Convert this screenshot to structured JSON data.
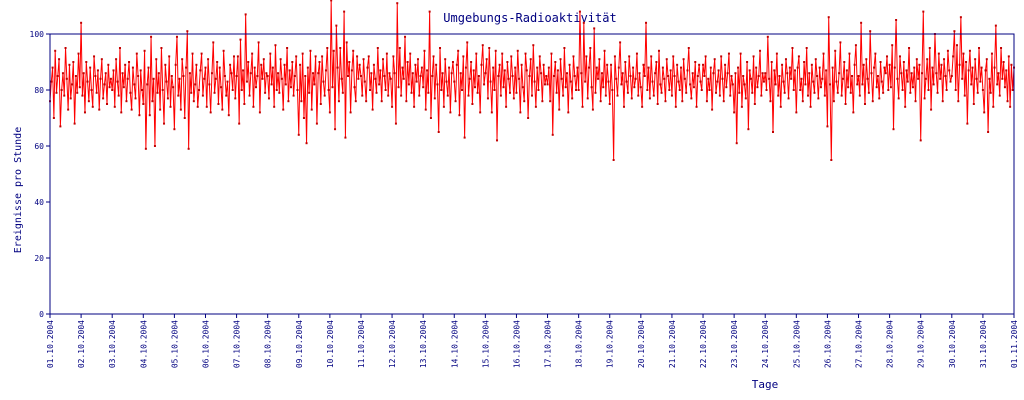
{
  "chart_data": {
    "type": "line",
    "title": "Umgebungs-Radioaktivität",
    "xlabel": "Tage",
    "ylabel": "Ereignisse pro Stunde",
    "ylim": [
      0,
      100
    ],
    "yticks": [
      0,
      20,
      40,
      60,
      80,
      100
    ],
    "x_tick_labels": [
      "01.10.2004",
      "02.10.2004",
      "03.10.2004",
      "04.10.2004",
      "05.10.2004",
      "06.10.2004",
      "07.10.2004",
      "08.10.2004",
      "09.10.2004",
      "10.10.2004",
      "11.10.2004",
      "12.10.2004",
      "13.10.2004",
      "14.10.2004",
      "15.10.2004",
      "16.10.2004",
      "17.10.2004",
      "18.10.2004",
      "19.10.2004",
      "20.10.2004",
      "21.10.2004",
      "22.10.2004",
      "23.10.2004",
      "24.10.2004",
      "25.10.2004",
      "26.10.2004",
      "27.10.2004",
      "28.10.2004",
      "29.10.2004",
      "30.10.2004",
      "31.10.2004",
      "01.11.2004"
    ],
    "grid": false,
    "legend": "none",
    "series": [
      {
        "color": "#ff0000",
        "marker_color": "#c00000",
        "description": "hourly counts, 01.10.2004 to 01.11.2004",
        "daily_values": [
          [
            76,
            83,
            88,
            70,
            94,
            79,
            85,
            91,
            67,
            80,
            86,
            78,
            95,
            84,
            73,
            89,
            77,
            82,
            90,
            68,
            85,
            79,
            93,
            81
          ],
          [
            104,
            78,
            86,
            72,
            90,
            83,
            76,
            88,
            80,
            74,
            92,
            85,
            79,
            87,
            73,
            84,
            91,
            77,
            82,
            86,
            75,
            89,
            81,
            84
          ],
          [
            80,
            87,
            74,
            91,
            83,
            78,
            95,
            72,
            86,
            81,
            89,
            76,
            84,
            90,
            79,
            73,
            88,
            82,
            77,
            93,
            85,
            71,
            87,
            80
          ],
          [
            75,
            94,
            59,
            82,
            88,
            71,
            99,
            76,
            84,
            60,
            91,
            79,
            86,
            73,
            95,
            80,
            68,
            89,
            83,
            77,
            92,
            74,
            85,
            81
          ],
          [
            66,
            89,
            99,
            78,
            84,
            73,
            91,
            85,
            70,
            88,
            101,
            59,
            86,
            79,
            93,
            76,
            82,
            89,
            74,
            80,
            87,
            93,
            78,
            84
          ],
          [
            88,
            74,
            91,
            82,
            72,
            86,
            97,
            79,
            84,
            90,
            75,
            88,
            81,
            73,
            94,
            85,
            78,
            83,
            71,
            89,
            86,
            80,
            92,
            77
          ],
          [
            85,
            92,
            68,
            98,
            80,
            87,
            75,
            107,
            83,
            90,
            78,
            86,
            93,
            74,
            88,
            81,
            85,
            97,
            72,
            89,
            84,
            91,
            79,
            86
          ],
          [
            85,
            77,
            93,
            82,
            88,
            74,
            96,
            80,
            86,
            79,
            91,
            84,
            73,
            89,
            82,
            95,
            76,
            87,
            81,
            90,
            78,
            85,
            92,
            80
          ],
          [
            64,
            89,
            76,
            93,
            70,
            85,
            61,
            88,
            79,
            94,
            73,
            86,
            82,
            92,
            68,
            86,
            90,
            75,
            92,
            83,
            78,
            87,
            95,
            80
          ],
          [
            72,
            112,
            81,
            94,
            66,
            103,
            88,
            76,
            95,
            84,
            79,
            108,
            63,
            97,
            85,
            90,
            72,
            87,
            94,
            81,
            76,
            92,
            84,
            89
          ],
          [
            85,
            78,
            91,
            83,
            76,
            88,
            92,
            80,
            86,
            73,
            89,
            84,
            79,
            95,
            82,
            87,
            76,
            91,
            85,
            80,
            93,
            78,
            86,
            84
          ],
          [
            74,
            92,
            86,
            68,
            111,
            81,
            95,
            78,
            88,
            84,
            99,
            76,
            90,
            82,
            93,
            79,
            86,
            74,
            89,
            83,
            91,
            78,
            85,
            88
          ],
          [
            81,
            94,
            73,
            87,
            79,
            108,
            70,
            85,
            92,
            77,
            89,
            82,
            65,
            95,
            80,
            86,
            74,
            91,
            83,
            78,
            88,
            72,
            86,
            90
          ],
          [
            83,
            76,
            89,
            94,
            71,
            86,
            80,
            92,
            63,
            88,
            97,
            78,
            84,
            90,
            75,
            87,
            81,
            93,
            79,
            85,
            72,
            89,
            96,
            82
          ],
          [
            86,
            91,
            77,
            95,
            83,
            72,
            88,
            80,
            94,
            62,
            85,
            89,
            78,
            93,
            81,
            87,
            74,
            90,
            84,
            79,
            92,
            85,
            77,
            88
          ],
          [
            79,
            94,
            84,
            72,
            89,
            81,
            76,
            93,
            87,
            70,
            85,
            91,
            78,
            96,
            83,
            74,
            88,
            80,
            92,
            86,
            76,
            89,
            82,
            85
          ],
          [
            82,
            88,
            76,
            93,
            64,
            85,
            90,
            79,
            87,
            73,
            91,
            84,
            78,
            95,
            81,
            86,
            72,
            89,
            83,
            77,
            92,
            85,
            80,
            88
          ],
          [
            80,
            108,
            86,
            74,
            104,
            83,
            92,
            77,
            88,
            95,
            81,
            73,
            102,
            79,
            88,
            84,
            91,
            76,
            86,
            81,
            94,
            78,
            89,
            83
          ],
          [
            75,
            89,
            80,
            55,
            92,
            84,
            78,
            88,
            97,
            82,
            86,
            74,
            90,
            83,
            79,
            92,
            85,
            77,
            88,
            81,
            84,
            93,
            78,
            86
          ],
          [
            81,
            74,
            89,
            85,
            104,
            80,
            88,
            77,
            92,
            83,
            78,
            86,
            90,
            75,
            94,
            82,
            79,
            88,
            84,
            76,
            91,
            85,
            80,
            87
          ],
          [
            78,
            92,
            85,
            74,
            89,
            83,
            80,
            88,
            76,
            91,
            84,
            79,
            87,
            95,
            82,
            77,
            86,
            81,
            90,
            74,
            85,
            89,
            83,
            80
          ],
          [
            89,
            85,
            92,
            76,
            84,
            80,
            88,
            73,
            86,
            91,
            79,
            83,
            87,
            78,
            92,
            84,
            76,
            89,
            81,
            86,
            93,
            78,
            85,
            82
          ],
          [
            72,
            86,
            61,
            88,
            79,
            93,
            74,
            85,
            82,
            77,
            90,
            66,
            87,
            84,
            79,
            92,
            75,
            88,
            81,
            85,
            94,
            78,
            86,
            83
          ],
          [
            86,
            80,
            99,
            84,
            76,
            90,
            65,
            87,
            82,
            93,
            78,
            85,
            74,
            89,
            83,
            79,
            91,
            86,
            77,
            88,
            84,
            95,
            80,
            87
          ],
          [
            72,
            88,
            92,
            80,
            84,
            76,
            90,
            82,
            95,
            78,
            86,
            74,
            89,
            83,
            79,
            91,
            85,
            77,
            88,
            81,
            84,
            93,
            78,
            87
          ],
          [
            67,
            106,
            82,
            55,
            88,
            76,
            94,
            83,
            79,
            86,
            97,
            78,
            84,
            90,
            75,
            87,
            81,
            93,
            79,
            85,
            72,
            89,
            96,
            82
          ],
          [
            85,
            78,
            104,
            82,
            89,
            75,
            91,
            84,
            79,
            101,
            86,
            76,
            88,
            93,
            81,
            85,
            77,
            90,
            83,
            79,
            88,
            86,
            92,
            80
          ],
          [
            89,
            81,
            96,
            66,
            88,
            105,
            84,
            77,
            92,
            86,
            80,
            90,
            74,
            87,
            83,
            95,
            79,
            86,
            81,
            88,
            76,
            91,
            84,
            89
          ],
          [
            62,
            86,
            108,
            77,
            84,
            91,
            80,
            95,
            73,
            88,
            82,
            100,
            86,
            79,
            93,
            84,
            89,
            76,
            91,
            85,
            80,
            94,
            87,
            83
          ],
          [
            85,
            92,
            101,
            80,
            96,
            76,
            89,
            106,
            84,
            93,
            78,
            90,
            68,
            87,
            94,
            82,
            88,
            75,
            91,
            84,
            79,
            95,
            83,
            88
          ],
          [
            80,
            72,
            87,
            91,
            65,
            84,
            79,
            93,
            74,
            88,
            103,
            82,
            86,
            78,
            95,
            84,
            90,
            81,
            87,
            76,
            92,
            74,
            89,
            80
          ],
          [
            88
          ]
        ]
      }
    ]
  }
}
